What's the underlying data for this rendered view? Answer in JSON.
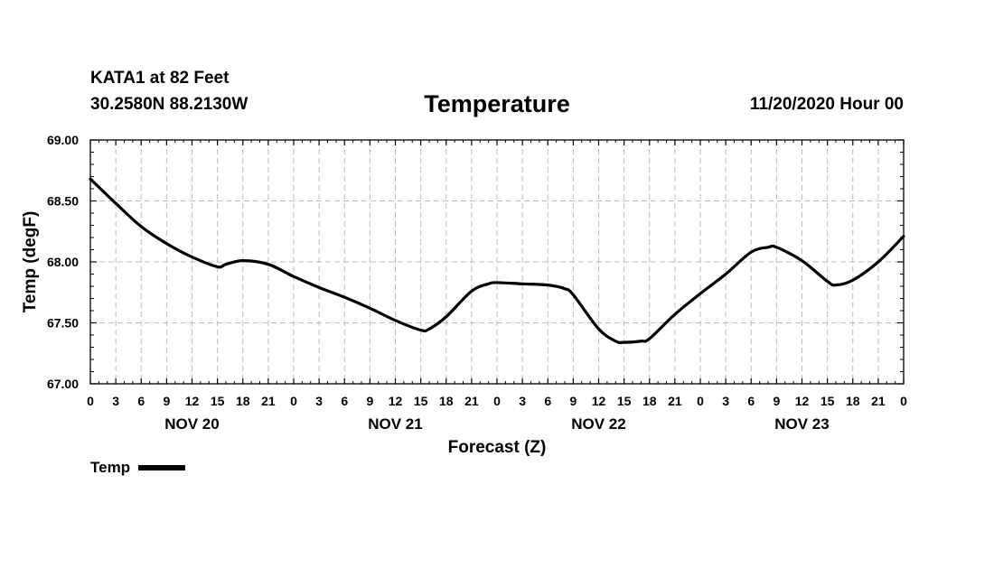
{
  "header": {
    "station": "KATA1 at 82 Feet",
    "coords": "30.2580N 88.2130W",
    "title": "Temperature",
    "issued": "11/20/2020 Hour 00"
  },
  "legend": {
    "label": "Temp"
  },
  "chart_data": {
    "type": "line",
    "title": "Temperature",
    "xlabel": "Forecast (Z)",
    "ylabel": "Temp (degF)",
    "ylim": [
      67.0,
      69.0
    ],
    "yticks": [
      "67.00",
      "67.50",
      "68.00",
      "68.50",
      "69.00"
    ],
    "xlim": [
      0,
      96
    ],
    "xticks": [
      {
        "hour": 0,
        "label": "0"
      },
      {
        "hour": 3,
        "label": "3"
      },
      {
        "hour": 6,
        "label": "6"
      },
      {
        "hour": 9,
        "label": "9"
      },
      {
        "hour": 12,
        "label": "12"
      },
      {
        "hour": 15,
        "label": "15"
      },
      {
        "hour": 18,
        "label": "18"
      },
      {
        "hour": 21,
        "label": "21"
      },
      {
        "hour": 24,
        "label": "0"
      },
      {
        "hour": 27,
        "label": "3"
      },
      {
        "hour": 30,
        "label": "6"
      },
      {
        "hour": 33,
        "label": "9"
      },
      {
        "hour": 36,
        "label": "12"
      },
      {
        "hour": 39,
        "label": "15"
      },
      {
        "hour": 42,
        "label": "18"
      },
      {
        "hour": 45,
        "label": "21"
      },
      {
        "hour": 48,
        "label": "0"
      },
      {
        "hour": 51,
        "label": "3"
      },
      {
        "hour": 54,
        "label": "6"
      },
      {
        "hour": 57,
        "label": "9"
      },
      {
        "hour": 60,
        "label": "12"
      },
      {
        "hour": 63,
        "label": "15"
      },
      {
        "hour": 66,
        "label": "18"
      },
      {
        "hour": 69,
        "label": "21"
      },
      {
        "hour": 72,
        "label": "0"
      },
      {
        "hour": 75,
        "label": "3"
      },
      {
        "hour": 78,
        "label": "6"
      },
      {
        "hour": 81,
        "label": "9"
      },
      {
        "hour": 84,
        "label": "12"
      },
      {
        "hour": 87,
        "label": "15"
      },
      {
        "hour": 90,
        "label": "18"
      },
      {
        "hour": 93,
        "label": "21"
      },
      {
        "hour": 96,
        "label": "0"
      }
    ],
    "day_labels": [
      {
        "hour": 12,
        "label": "NOV 20"
      },
      {
        "hour": 36,
        "label": "NOV 21"
      },
      {
        "hour": 60,
        "label": "NOV 22"
      },
      {
        "hour": 84,
        "label": "NOV 23"
      }
    ],
    "grid": true,
    "series": [
      {
        "name": "Temp",
        "color": "#000000",
        "x": [
          0,
          3,
          6,
          9,
          12,
          15,
          16,
          18,
          21,
          24,
          27,
          30,
          33,
          36,
          39,
          40,
          42,
          45,
          47,
          48,
          51,
          54,
          56,
          57,
          60,
          62,
          63,
          65,
          66,
          69,
          72,
          75,
          78,
          80,
          81,
          84,
          87,
          88,
          90,
          93,
          96
        ],
        "y": [
          68.68,
          68.48,
          68.29,
          68.15,
          68.04,
          67.96,
          67.98,
          68.01,
          67.98,
          67.88,
          67.79,
          67.71,
          67.62,
          67.52,
          67.44,
          67.45,
          67.55,
          67.76,
          67.82,
          67.83,
          67.82,
          67.81,
          67.78,
          67.73,
          67.45,
          67.35,
          67.34,
          67.35,
          67.37,
          67.57,
          67.74,
          67.9,
          68.08,
          68.12,
          68.12,
          68.01,
          67.84,
          67.81,
          67.85,
          68.0,
          68.21
        ]
      }
    ]
  }
}
